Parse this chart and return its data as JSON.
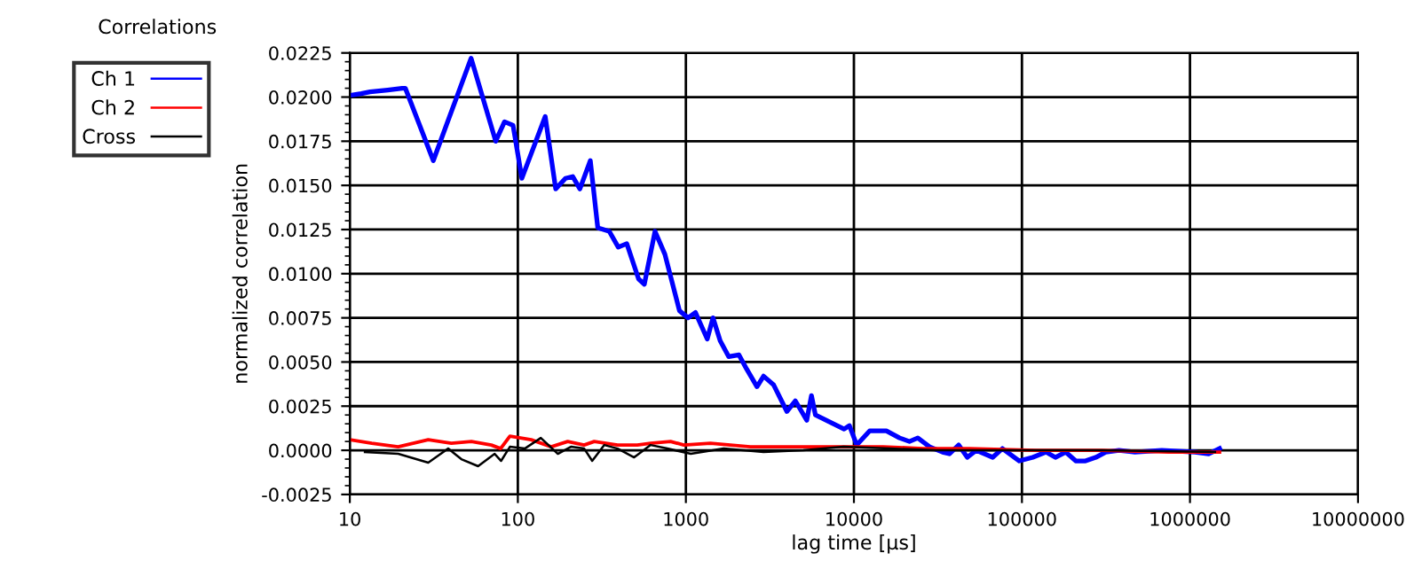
{
  "chart_data": {
    "type": "line",
    "title": "Correlations",
    "xlabel": "lag time [µs]",
    "ylabel": "normalized correlation",
    "log": "x",
    "grid": true,
    "legend": "top left",
    "marker": "none",
    "line_style": "solid",
    "xlim": [
      10,
      10000000
    ],
    "xticks": [
      10,
      100,
      1000,
      10000,
      100000,
      1000000,
      10000000
    ],
    "ylim": [
      -0.0025,
      0.0225
    ],
    "yticks": [
      {
        "value": -0.0025,
        "label": "-0.0025"
      },
      {
        "value": 0,
        "label": "0.0000"
      },
      {
        "value": 0.0025,
        "label": "0.0025"
      },
      {
        "value": 0.005,
        "label": "0.0050"
      },
      {
        "value": 0.0075,
        "label": "0.0075"
      },
      {
        "value": 0.01,
        "label": "0.0100"
      },
      {
        "value": 0.0125,
        "label": "0.0125"
      },
      {
        "value": 0.015,
        "label": "0.0150"
      },
      {
        "value": 0.0175,
        "label": "0.0175"
      },
      {
        "value": 0.02,
        "label": "0.0200"
      },
      {
        "value": 0.0225,
        "label": "0.0225"
      }
    ],
    "series": [
      {
        "name": "Ch 1",
        "color": "#0000ff",
        "x": [
          10,
          11.7,
          13.2,
          16.8,
          20.5,
          21.4,
          31.4,
          52.7,
          73.8,
          83.3,
          93.6,
          105.7,
          145.5,
          168,
          192,
          212,
          234,
          270,
          299,
          350,
          396,
          445,
          523,
          566,
          655,
          750,
          916,
          1030,
          1140,
          1340,
          1450,
          1600,
          1800,
          2070,
          2300,
          2650,
          2900,
          3330,
          3990,
          4480,
          5240,
          5590,
          5900,
          7540,
          8740,
          9400,
          10400,
          12400,
          15600,
          18700,
          21400,
          24000,
          28200,
          33700,
          37000,
          42000,
          47300,
          53400,
          67000,
          76500,
          96400,
          116000,
          139000,
          158000,
          182000,
          209000,
          239000,
          275000,
          315000,
          378000,
          470000,
          680000,
          1070000,
          1290000,
          1500000
        ],
        "values": [
          0.0201,
          0.0202,
          0.0203,
          0.0204,
          0.0205,
          0.0205,
          0.0164,
          0.0222,
          0.0175,
          0.0186,
          0.0184,
          0.0154,
          0.0189,
          0.0148,
          0.0154,
          0.0155,
          0.0148,
          0.0164,
          0.0126,
          0.0124,
          0.0115,
          0.0117,
          0.0097,
          0.0094,
          0.0124,
          0.0111,
          0.0079,
          0.0075,
          0.0078,
          0.0063,
          0.0075,
          0.0062,
          0.0053,
          0.0054,
          0.0046,
          0.0036,
          0.0042,
          0.0037,
          0.0022,
          0.0028,
          0.0017,
          0.0031,
          0.002,
          0.0015,
          0.0012,
          0.0014,
          0.0003,
          0.0011,
          0.0011,
          0.0007,
          0.0005,
          0.0007,
          0.0002,
          -0.0001,
          -0.0002,
          0.0003,
          -0.0004,
          0.0,
          -0.0004,
          0.0001,
          -0.0006,
          -0.0004,
          -0.0001,
          -0.0004,
          -0.0001,
          -0.0006,
          -0.0006,
          -0.0004,
          -0.0001,
          0.0,
          -0.0001,
          0.0,
          -0.0001,
          -0.0002,
          0.0001
        ]
      },
      {
        "name": "Ch 2",
        "color": "#ff0000",
        "x": [
          10,
          13.5,
          19.4,
          29.3,
          40.2,
          52.9,
          69.5,
          79,
          89.7,
          120,
          158,
          198,
          248,
          285,
          392,
          514,
          617,
          811,
          972,
          1400,
          2420,
          4180,
          8660,
          14900,
          25800,
          48800,
          121000,
          300000,
          750000,
          1500000
        ],
        "values": [
          0.0006,
          0.0004,
          0.0002,
          0.0006,
          0.0004,
          0.0005,
          0.0003,
          0.0001,
          0.0008,
          0.0006,
          0.0002,
          0.0005,
          0.0003,
          0.0005,
          0.0003,
          0.0003,
          0.0004,
          0.0005,
          0.0003,
          0.0004,
          0.0002,
          0.0002,
          0.0002,
          0.0002,
          0.0001,
          0.0001,
          0.0,
          0.0,
          -0.0001,
          -0.0001
        ]
      },
      {
        "name": "Cross",
        "color": "#000000",
        "x": [
          12.3,
          19.4,
          29.3,
          38.5,
          46.1,
          58,
          72.8,
          79.5,
          89.7,
          110,
          137,
          173,
          207,
          248,
          277,
          327,
          392,
          492,
          617,
          775,
          1070,
          1680,
          2900,
          5000,
          8660,
          16300,
          30900,
          76700,
          300000,
          1410000
        ],
        "values": [
          -0.0001,
          -0.0002,
          -0.0007,
          0.0001,
          -0.0005,
          -0.0009,
          -0.0002,
          -0.0006,
          0.0002,
          0.0001,
          0.0007,
          -0.0002,
          0.0002,
          0.0001,
          -0.0006,
          0.0003,
          0.0001,
          -0.0004,
          0.0003,
          0.0001,
          -0.0002,
          0.0001,
          -0.0001,
          0.0,
          0.0002,
          0.0001,
          0.0,
          0.0,
          0.0,
          -0.0001
        ]
      }
    ]
  }
}
